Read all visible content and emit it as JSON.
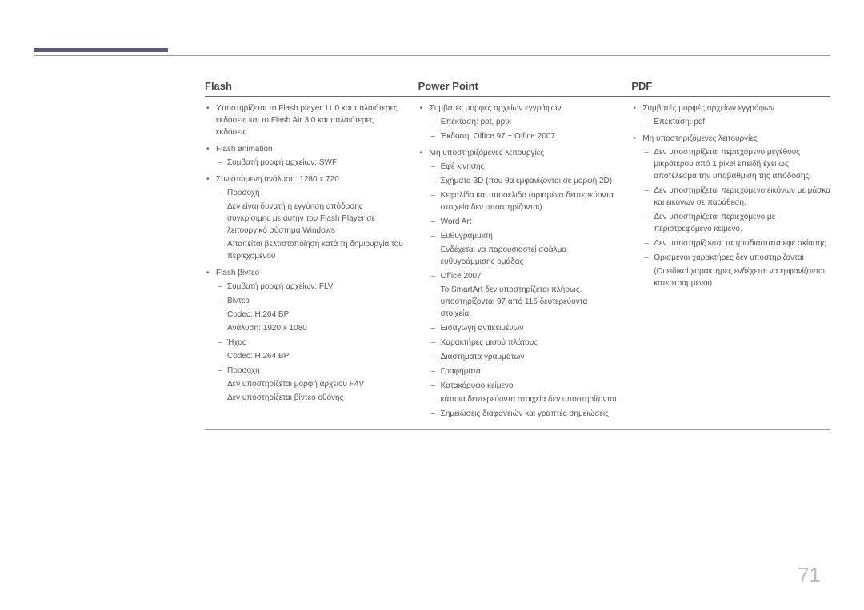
{
  "page_number": "71",
  "columns": {
    "flash": {
      "heading": "Flash",
      "items": [
        {
          "text": "Υποστηρίζεται το Flash player 11.0 και παλαιότερες εκδόσεις και το Flash Air 3.0 και παλαιότερες εκδόσεις."
        },
        {
          "text": "Flash animation",
          "sub": [
            {
              "text": "Συμβατή μορφή αρχείων: SWF"
            }
          ]
        },
        {
          "text": "Συνιστώμενη ανάλυση: 1280 x 720",
          "sub": [
            {
              "text": "Προσοχή",
              "lines": [
                "Δεν είναι δυνατή η εγγύηση απόδοσης συγκρίσιμης με αυτήν του Flash Player σε λειτουργικό σύστημα Windows",
                "Απαιτείται βελτιστοποίηση κατά τη δημιουργία του περιεχομένου"
              ]
            }
          ]
        },
        {
          "text": "Flash βίντεο",
          "sub": [
            {
              "text": "Συμβατή μορφή αρχείων: FLV"
            },
            {
              "text": "Βίντεο",
              "lines": [
                "Codec: H.264 BP",
                "Ανάλυση: 1920 x 1080"
              ]
            },
            {
              "text": "Ήχος",
              "lines": [
                "Codec: H.264 BP"
              ]
            },
            {
              "text": "Προσοχή",
              "lines": [
                "Δεν υποστηρίζεται μορφή αρχείου F4V",
                "Δεν υποστηρίζεται βίντεο οθόνης"
              ]
            }
          ]
        }
      ]
    },
    "powerpoint": {
      "heading": "Power Point",
      "items": [
        {
          "text": "Συμβατές μορφές αρχείων εγγράφων",
          "sub": [
            {
              "text": "Επέκταση: ppt, pptx"
            },
            {
              "text": "Έκδοση: Office 97 ~ Office 2007"
            }
          ]
        },
        {
          "text": "Μη υποστηριζόμενες λειτουργίες",
          "sub": [
            {
              "text": "Εφέ κίνησης"
            },
            {
              "text": "Σχήματα 3D (που θα εμφανίζονται σε μορφή 2D)"
            },
            {
              "text": "Κεφαλίδα και υποσέλιδο (ορισμένα δευτερεύοντα στοιχεία δεν υποστηρίζονται)"
            },
            {
              "text": "Word Art"
            },
            {
              "text": "Ευθυγράμμιση",
              "lines": [
                "Ενδέχεται να παρουσιαστεί σφάλμα ευθυγράμμισης ομάδας"
              ]
            },
            {
              "text": "Office 2007",
              "lines": [
                "Το SmartArt δεν υποστηρίζεται πλήρως. υποστηρίζονται 97 από 115 δευτερεύοντα στοιχεία."
              ]
            },
            {
              "text": "Εισαγωγή αντικειμένων"
            },
            {
              "text": "Χαρακτήρες μισού πλάτους"
            },
            {
              "text": "Διαστήματα γραμμάτων"
            },
            {
              "text": "Γραφήματα"
            },
            {
              "text": "Κατακόρυφο κείμενο",
              "lines": [
                "κάποια δευτερεύοντα στοιχεία δεν υποστηρίζονται"
              ]
            },
            {
              "text": "Σημειώσεις διαφανειών και γραπτές σημειώσεις"
            }
          ]
        }
      ]
    },
    "pdf": {
      "heading": "PDF",
      "items": [
        {
          "text": "Συμβατές μορφές αρχείων εγγράφων",
          "sub": [
            {
              "text": "Επέκταση: pdf"
            }
          ]
        },
        {
          "text": "Μη υποστηριζόμενες λειτουργίες",
          "sub": [
            {
              "text": "Δεν υποστηρίζεται περιεχόμενο μεγέθους μικρότερου από 1 pixel επειδή έχει ως αποτέλεσμα την υποβάθμιση της απόδοσης."
            },
            {
              "text": "Δεν υποστηρίζεται περιεχόμενο εικόνων με μάσκα και εικόνων σε παράθεση."
            },
            {
              "text": "Δεν υποστηρίζεται περιεχόμενο με περιστρεφόμενο κείμενο."
            },
            {
              "text": "Δεν υποστηρίζονται τα τρισδιάστατα εφέ σκίασης."
            },
            {
              "text": "Ορισμένοι χαρακτήρες δεν υποστηρίζονται",
              "lines": [
                "(Οι ειδικοί χαρακτήρες ενδέχεται να εμφανίζονται κατεστραμμένοι)"
              ]
            }
          ]
        }
      ]
    }
  },
  "colors": {
    "accent_bar": "#5a5a7a",
    "rule": "#999999",
    "header_rule": "#666666",
    "text": "#555555",
    "heading": "#444444",
    "page_number": "#bdbdbd",
    "background": "#ffffff"
  }
}
